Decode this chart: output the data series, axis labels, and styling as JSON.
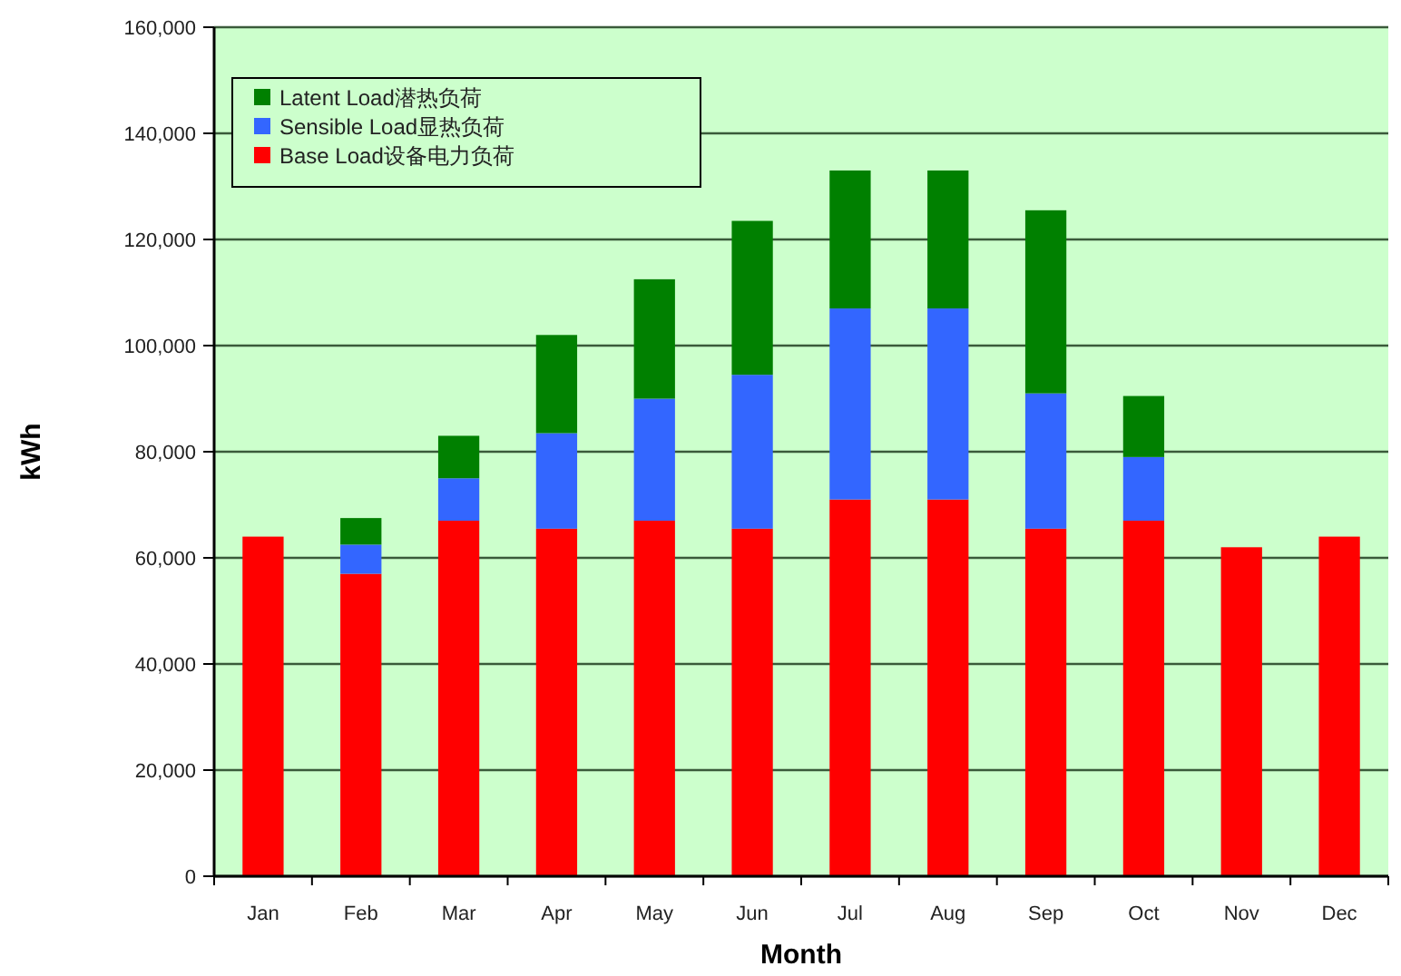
{
  "chart_data": {
    "type": "bar",
    "stacked": true,
    "xlabel": "Month",
    "ylabel": "kWh",
    "categories": [
      "Jan",
      "Feb",
      "Mar",
      "Apr",
      "May",
      "Jun",
      "Jul",
      "Aug",
      "Sep",
      "Oct",
      "Nov",
      "Dec"
    ],
    "series": [
      {
        "name": "Base Load设备电力负荷",
        "color": "#ff0000",
        "values": [
          64000,
          57000,
          67000,
          65500,
          67000,
          65500,
          71000,
          71000,
          65500,
          67000,
          62000,
          64000
        ]
      },
      {
        "name": "Sensible Load显热负荷",
        "color": "#3366ff",
        "values": [
          null,
          5500,
          8000,
          18000,
          23000,
          29000,
          36000,
          36000,
          25500,
          12000,
          null,
          null
        ]
      },
      {
        "name": "Latent Load潜热负荷",
        "color": "#008000",
        "values": [
          null,
          5000,
          8000,
          18500,
          22500,
          29000,
          26000,
          26000,
          34500,
          11500,
          null,
          null
        ]
      }
    ],
    "ylim": [
      0,
      160000
    ],
    "yticks": [
      0,
      {
        "value": 20000,
        "label": "20,000"
      },
      {
        "value": 40000,
        "label": "40,000"
      },
      {
        "value": 60000,
        "label": "60,000"
      },
      {
        "value": 80000,
        "label": "80,000"
      },
      {
        "value": 100000,
        "label": "100,000"
      },
      {
        "value": 120000,
        "label": "120,000"
      },
      {
        "value": 140000,
        "label": "140,000"
      },
      {
        "value": 160000,
        "label": "160,000"
      }
    ],
    "grid": "y",
    "legend": "top left"
  }
}
